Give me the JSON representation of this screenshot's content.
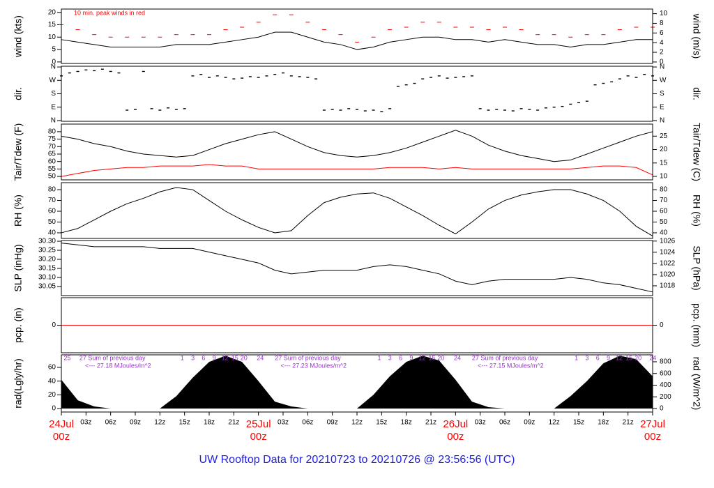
{
  "footer": "UW Rooftop Data for 20210723  to  20210726 @ 23:56:56  (UTC)",
  "x_axis": {
    "xlim": [
      0,
      72
    ],
    "x": [
      0,
      2,
      4,
      6,
      8,
      10,
      12,
      14,
      16,
      18,
      20,
      22,
      24,
      26,
      28,
      30,
      32,
      34,
      36,
      38,
      40,
      42,
      44,
      46,
      48,
      50,
      52,
      54,
      56,
      58,
      60,
      62,
      64,
      66,
      68,
      70,
      72
    ],
    "xticks": [
      {
        "value": 3,
        "label": "03z"
      },
      {
        "value": 6,
        "label": "06z"
      },
      {
        "value": 9,
        "label": "09z"
      },
      {
        "value": 12,
        "label": "12z"
      },
      {
        "value": 15,
        "label": "15z"
      },
      {
        "value": 18,
        "label": "18z"
      },
      {
        "value": 21,
        "label": "21z"
      },
      {
        "value": 27,
        "label": "03z"
      },
      {
        "value": 30,
        "label": "06z"
      },
      {
        "value": 33,
        "label": "09z"
      },
      {
        "value": 36,
        "label": "12z"
      },
      {
        "value": 39,
        "label": "15z"
      },
      {
        "value": 42,
        "label": "18z"
      },
      {
        "value": 45,
        "label": "21z"
      },
      {
        "value": 51,
        "label": "03z"
      },
      {
        "value": 54,
        "label": "06z"
      },
      {
        "value": 57,
        "label": "09z"
      },
      {
        "value": 60,
        "label": "12z"
      },
      {
        "value": 63,
        "label": "15z"
      },
      {
        "value": 66,
        "label": "18z"
      },
      {
        "value": 69,
        "label": "21z"
      }
    ],
    "day_x": [
      0,
      24,
      48,
      72
    ],
    "day_labels": [
      "24Jul",
      "25Jul",
      "26Jul",
      "27Jul"
    ],
    "day_sublabels": [
      "00z",
      "00z",
      "00z",
      "00z"
    ]
  },
  "chart_data": [
    {
      "type": "line",
      "ylabel": "wind (kts)",
      "y2label": "wind (m/s)",
      "annotation": "10 min. peak winds in red",
      "ylim": [
        -0.6,
        21.3
      ],
      "yticks": [
        0,
        5,
        10,
        15,
        20
      ],
      "y2lim": [
        -0.3,
        10.95
      ],
      "y2ticks": [
        0,
        2,
        4,
        6,
        8,
        10
      ],
      "series": [
        {
          "color": "#000000",
          "values": [
            9,
            8,
            7,
            6,
            6,
            6,
            6,
            7,
            7,
            7,
            8,
            9,
            10,
            12,
            12,
            10,
            8,
            7,
            5,
            6,
            8,
            9,
            10,
            10,
            9,
            9,
            8,
            9,
            8,
            7,
            7,
            6,
            7,
            7,
            8,
            9,
            9
          ]
        },
        {
          "color": "#ff0000",
          "style": "dash",
          "values": [
            15,
            13,
            11,
            10,
            10,
            10,
            10,
            11,
            11,
            11,
            13,
            14,
            16,
            19,
            19,
            16,
            13,
            11,
            8,
            10,
            13,
            14,
            16,
            16,
            14,
            14,
            13,
            14,
            13,
            11,
            11,
            10,
            11,
            11,
            13,
            14,
            14
          ]
        }
      ]
    },
    {
      "type": "scatter",
      "ylabel": "dir.",
      "y2label": "dir.",
      "ylim": [
        -5,
        365
      ],
      "yticks": [
        {
          "value": 0,
          "label": "N"
        },
        {
          "value": 90,
          "label": "E"
        },
        {
          "value": 180,
          "label": "S"
        },
        {
          "value": 270,
          "label": "W"
        },
        {
          "value": 360,
          "label": "N"
        }
      ],
      "y2lim": [
        -5,
        365
      ],
      "y2ticks": [
        {
          "value": 0,
          "label": "N"
        },
        {
          "value": 90,
          "label": "E"
        },
        {
          "value": 180,
          "label": "S"
        },
        {
          "value": 270,
          "label": "W"
        },
        {
          "value": 360,
          "label": "N"
        }
      ],
      "x": [
        0,
        1,
        2,
        3,
        4,
        5,
        6,
        7,
        8,
        9,
        10,
        11,
        12,
        13,
        14,
        15,
        16,
        17,
        18,
        19,
        20,
        21,
        22,
        23,
        24,
        25,
        26,
        27,
        28,
        29,
        30,
        31,
        32,
        33,
        34,
        35,
        36,
        37,
        38,
        39,
        40,
        41,
        42,
        43,
        44,
        45,
        46,
        47,
        48,
        49,
        50,
        51,
        52,
        53,
        54,
        55,
        56,
        57,
        58,
        59,
        60,
        61,
        62,
        63,
        64,
        65,
        66,
        67,
        68,
        69,
        70,
        71,
        72
      ],
      "series": [
        {
          "color": "#000000",
          "values": [
            300,
            320,
            330,
            340,
            335,
            345,
            330,
            320,
            70,
            75,
            330,
            80,
            70,
            85,
            75,
            80,
            300,
            310,
            290,
            300,
            290,
            280,
            285,
            295,
            290,
            300,
            310,
            320,
            300,
            295,
            290,
            280,
            70,
            75,
            70,
            80,
            75,
            65,
            70,
            60,
            80,
            230,
            240,
            250,
            280,
            290,
            300,
            285,
            290,
            295,
            300,
            80,
            70,
            75,
            70,
            65,
            80,
            75,
            70,
            85,
            90,
            95,
            110,
            120,
            130,
            240,
            250,
            260,
            280,
            300,
            290,
            310,
            300
          ]
        }
      ]
    },
    {
      "type": "line",
      "ylabel": "Tair/Tdew (F)",
      "y2label": "Tair/Tdew (C)",
      "ylim": [
        47.7,
        85.1
      ],
      "yticks": [
        50,
        55,
        60,
        65,
        70,
        75,
        80
      ],
      "y2lim": [
        8.7,
        29.5
      ],
      "y2ticks": [
        10,
        15,
        20,
        25
      ],
      "series": [
        {
          "color": "#000000",
          "values": [
            77,
            75,
            72,
            70,
            67,
            65,
            64,
            63,
            64,
            68,
            72,
            75,
            78,
            80,
            75,
            70,
            66,
            64,
            63,
            64,
            66,
            69,
            73,
            77,
            81,
            77,
            71,
            67,
            64,
            62,
            60,
            61,
            65,
            69,
            73,
            77,
            80
          ]
        },
        {
          "color": "#ff0000",
          "values": [
            50,
            52,
            54,
            55,
            56,
            56,
            57,
            57,
            57,
            58,
            57,
            57,
            55,
            55,
            55,
            55,
            55,
            55,
            55,
            55,
            56,
            56,
            56,
            55,
            56,
            55,
            55,
            55,
            55,
            55,
            55,
            55,
            56,
            57,
            57,
            56,
            51
          ]
        }
      ]
    },
    {
      "type": "line",
      "ylabel": "RH (%)",
      "y2label": "RH (%)",
      "ylim": [
        34.8,
        86.5
      ],
      "yticks": [
        40,
        50,
        60,
        70,
        80
      ],
      "y2lim": [
        34.8,
        86.5
      ],
      "y2ticks": [
        40,
        50,
        60,
        70,
        80
      ],
      "series": [
        {
          "color": "#000000",
          "values": [
            40,
            44,
            52,
            60,
            67,
            72,
            78,
            82,
            80,
            70,
            60,
            52,
            45,
            40,
            42,
            56,
            68,
            73,
            76,
            77,
            72,
            64,
            56,
            47,
            39,
            50,
            62,
            70,
            75,
            78,
            80,
            80,
            76,
            70,
            60,
            46,
            37
          ]
        }
      ]
    },
    {
      "type": "line",
      "ylabel": "SLP (inHg)",
      "y2label": "SLP (hPa)",
      "ylim": [
        30.0,
        30.304
      ],
      "yticks": [
        30.05,
        {
          "value": 30.1,
          "label": "30.10"
        },
        30.15,
        {
          "value": 30.2,
          "label": "30.20"
        },
        30.25,
        {
          "value": 30.3,
          "label": "30.30"
        }
      ],
      "y2lim": [
        1016.25,
        1026.1
      ],
      "y2ticks": [
        1018,
        1020,
        1022,
        1024,
        1026
      ],
      "series": [
        {
          "color": "#000000",
          "values": [
            30.29,
            30.28,
            30.27,
            30.27,
            30.27,
            30.27,
            30.26,
            30.26,
            30.26,
            30.24,
            30.22,
            30.2,
            30.18,
            30.14,
            30.12,
            30.13,
            30.14,
            30.14,
            30.14,
            30.16,
            30.17,
            30.16,
            30.14,
            30.12,
            30.08,
            30.06,
            30.08,
            30.09,
            30.09,
            30.09,
            30.09,
            30.1,
            30.09,
            30.07,
            30.06,
            30.04,
            30.02
          ]
        }
      ]
    },
    {
      "type": "line",
      "ylabel": "pcp. (in)",
      "y2label": "pcp. (mm)",
      "ylim": [
        -1,
        1
      ],
      "yticks": [
        0
      ],
      "y2lim": [
        -1,
        1
      ],
      "y2ticks": [
        0
      ],
      "x": [
        0,
        72
      ],
      "series": [
        {
          "color": "#ff0000",
          "values": [
            0,
            0
          ]
        }
      ]
    },
    {
      "type": "area",
      "ylabel": "rad(Lgly/hr)",
      "y2label": "rad (W/m^2)",
      "ylim": [
        -5.1,
        78.3
      ],
      "yticks": [
        0,
        20,
        40,
        60
      ],
      "y2lim": [
        -60,
        919
      ],
      "y2ticks": [
        0,
        200,
        400,
        600,
        800
      ],
      "label_color": "#9933cc",
      "labels_top": [
        {
          "text": "25",
          "x": 0.3
        },
        {
          "text": "27  Sum of previous day",
          "x": 2.2
        },
        {
          "text": "1",
          "x": 14.5
        },
        {
          "text": "3",
          "x": 15.8
        },
        {
          "text": "6",
          "x": 17.1
        },
        {
          "text": "9",
          "x": 18.4
        },
        {
          "text": "12",
          "x": 19.5
        },
        {
          "text": "15",
          "x": 20.7
        },
        {
          "text": "20",
          "x": 21.8
        },
        {
          "text": "24",
          "x": 23.8
        },
        {
          "text": "27  Sum of previous day",
          "x": 26
        },
        {
          "text": "1",
          "x": 38.5
        },
        {
          "text": "3",
          "x": 39.8
        },
        {
          "text": "6",
          "x": 41.1
        },
        {
          "text": "9",
          "x": 42.4
        },
        {
          "text": "12",
          "x": 43.5
        },
        {
          "text": "15",
          "x": 44.7
        },
        {
          "text": "20",
          "x": 45.8
        },
        {
          "text": "24",
          "x": 47.8
        },
        {
          "text": "27  Sum of previous day",
          "x": 50
        },
        {
          "text": "1",
          "x": 62.5
        },
        {
          "text": "3",
          "x": 63.8
        },
        {
          "text": "6",
          "x": 65.1
        },
        {
          "text": "9",
          "x": 66.4
        },
        {
          "text": "12",
          "x": 67.5
        },
        {
          "text": "15",
          "x": 68.7
        },
        {
          "text": "20",
          "x": 69.8
        },
        {
          "text": "24",
          "x": 71.6
        }
      ],
      "labels_sum": [
        {
          "text": "<--- 27.18 MJoules/m^2",
          "x": 2.9
        },
        {
          "text": "<--- 27.23 MJoules/m^2",
          "x": 26.7
        },
        {
          "text": "<--- 27.15 MJoules/m^2",
          "x": 50.7
        }
      ],
      "series": [
        {
          "color": "#000000",
          "values": [
            42,
            12,
            3,
            0,
            0,
            0,
            0,
            18,
            45,
            68,
            77,
            68,
            40,
            10,
            3,
            0,
            0,
            0,
            0,
            20,
            47,
            68,
            77,
            70,
            42,
            10,
            2,
            0,
            0,
            0,
            0,
            18,
            40,
            66,
            77,
            72,
            47
          ]
        }
      ]
    }
  ]
}
